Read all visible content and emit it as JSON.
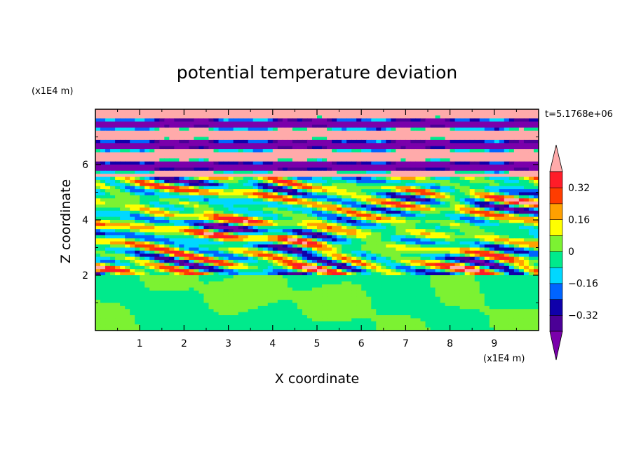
{
  "chart_data": {
    "type": "heatmap",
    "title": "potential temperature deviation",
    "xlabel": "X coordinate",
    "ylabel": "Z coordinate",
    "x_unit": "(x1E4 m)",
    "y_unit": "(x1E4 m)",
    "time_label": "t=5.1768e+06",
    "xlim": [
      0,
      10
    ],
    "ylim": [
      0,
      8
    ],
    "x_ticks": [
      "1",
      "2",
      "3",
      "4",
      "5",
      "6",
      "7",
      "8",
      "9"
    ],
    "y_ticks": [
      "2",
      "4",
      "6"
    ],
    "colorbar": {
      "labels": [
        "0.32",
        "0.16",
        "0",
        "−0.16",
        "−0.32"
      ],
      "label_values": [
        0.32,
        0.16,
        0,
        -0.16,
        -0.32
      ],
      "levels": [
        -0.4,
        -0.32,
        -0.24,
        -0.16,
        -0.08,
        0,
        0.08,
        0.16,
        0.24,
        0.32,
        0.4
      ],
      "colors": [
        "#7a00ab",
        "#4b0096",
        "#0f00aa",
        "#0064ff",
        "#00d8ff",
        "#00ea8c",
        "#7cf232",
        "#ffff00",
        "#ffa000",
        "#ff3c00",
        "#ff1c28",
        "#ffaaaa"
      ],
      "extend": "both"
    },
    "regions": [
      {
        "z_range": [
          0,
          2
        ],
        "description_values": [
          -0.04,
          0.04
        ]
      },
      {
        "z_range": [
          2,
          5.5
        ],
        "description_values": [
          -0.4,
          0.4
        ]
      },
      {
        "z_range": [
          5.5,
          8
        ],
        "description_values": [
          -0.4,
          0.4
        ]
      }
    ]
  }
}
